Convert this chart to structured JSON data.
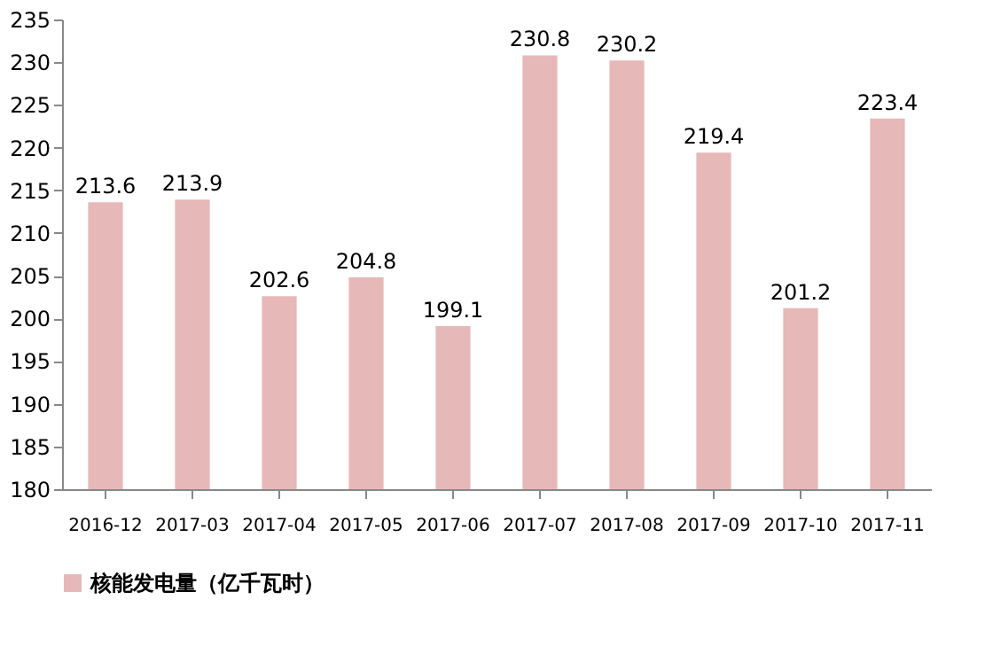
{
  "chart_data": {
    "type": "bar",
    "categories": [
      "2016-12",
      "2017-03",
      "2017-04",
      "2017-05",
      "2017-06",
      "2017-07",
      "2017-08",
      "2017-09",
      "2017-10",
      "2017-11"
    ],
    "series": [
      {
        "name": "核能发电量（亿千瓦时）",
        "color": "#e6b8b7",
        "values": [
          213.6,
          213.9,
          202.6,
          204.8,
          199.1,
          230.8,
          230.2,
          219.4,
          201.2,
          223.4
        ]
      }
    ],
    "ylim": [
      180,
      235
    ],
    "yticks": [
      180,
      185,
      190,
      195,
      200,
      205,
      210,
      215,
      220,
      225,
      230,
      235
    ],
    "data_labels": true,
    "grid": false,
    "legend": "bottom left"
  }
}
